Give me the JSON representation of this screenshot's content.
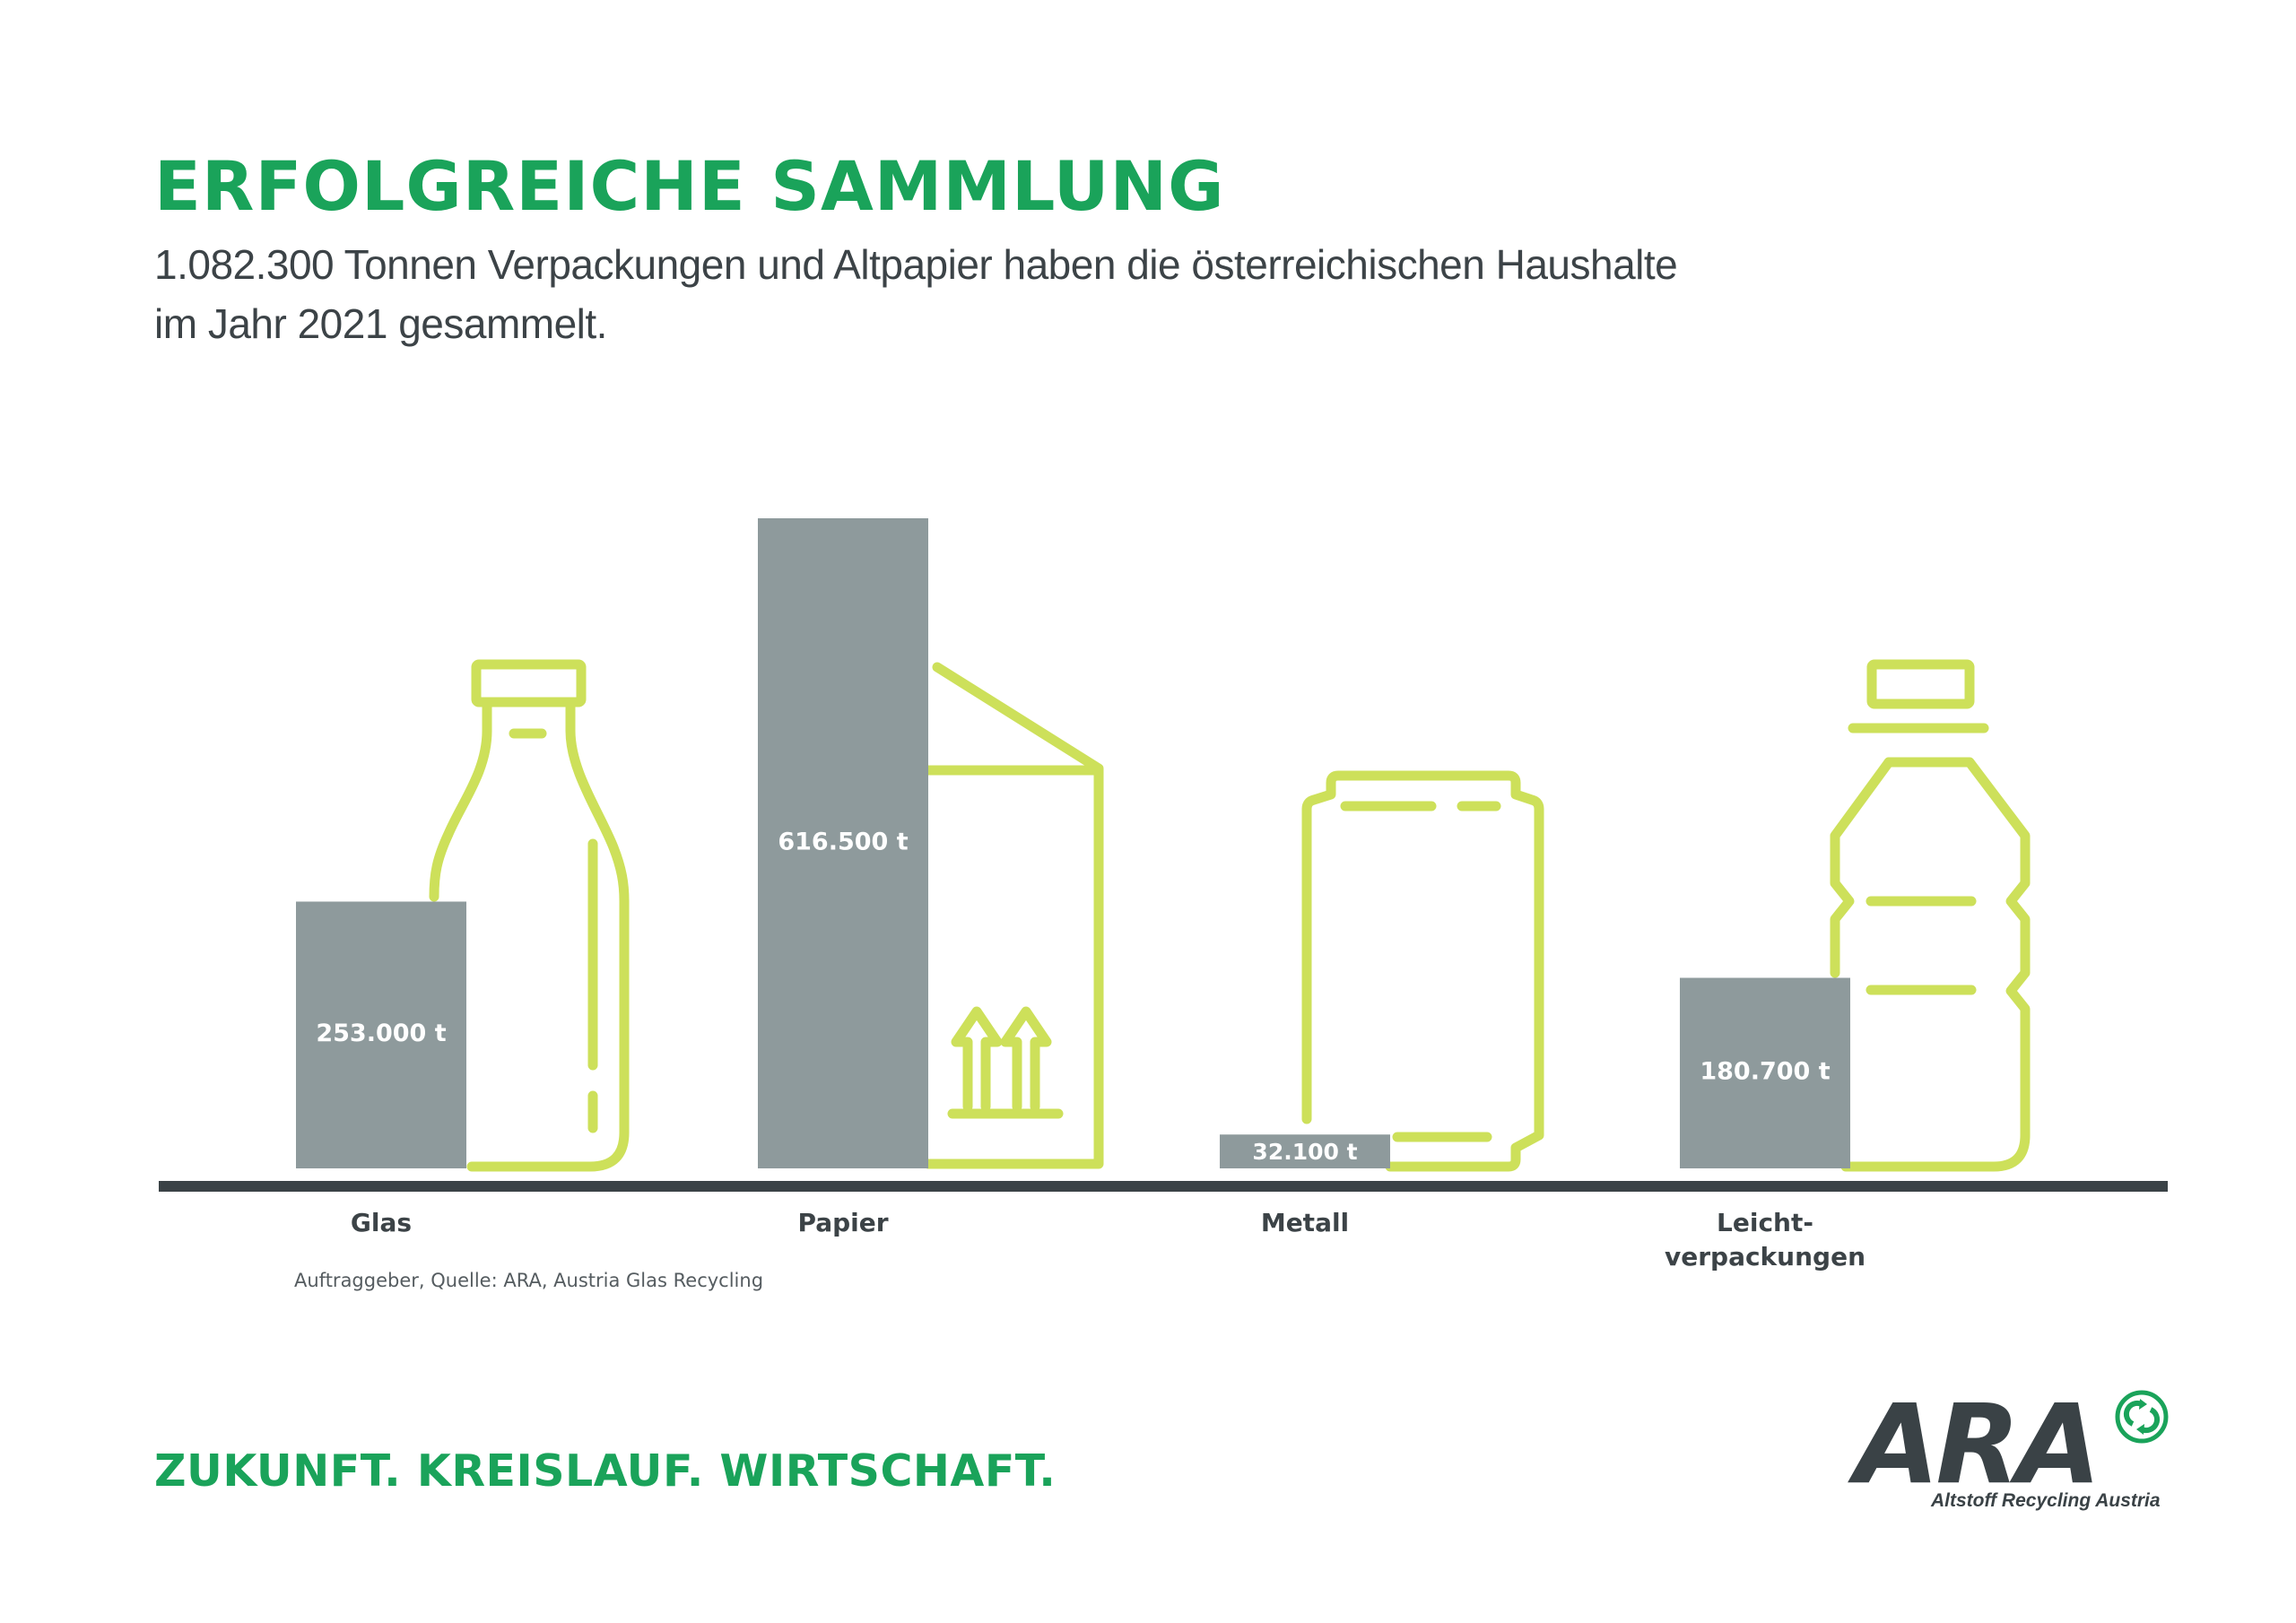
{
  "header": {
    "title": "ERFOLGREICHE SAMMLUNG",
    "subtitle_line1": "1.082.300 Tonnen Verpackungen und Altpapier haben die österreichischen Haushalte",
    "subtitle_line2": "im Jahr 2021 gesammelt."
  },
  "chart_data": {
    "type": "bar",
    "categories": [
      "Glas",
      "Papier",
      "Metall",
      "Leicht-verpackungen"
    ],
    "category_label_lines": [
      [
        "Glas"
      ],
      [
        "Papier"
      ],
      [
        "Metall"
      ],
      [
        "Leicht-",
        "verpackungen"
      ]
    ],
    "values": [
      253000,
      616500,
      32100,
      180700
    ],
    "value_labels": [
      "253.000 t",
      "616.500 t",
      "32.100 t",
      "180.700 t"
    ],
    "unit": "t",
    "icons": [
      "glass-bottle-icon",
      "paper-carton-icon",
      "metal-can-icon",
      "plastic-bottle-icon"
    ],
    "bar_color": "#8e9a9c",
    "icon_color": "#cde05a",
    "baseline_color": "#3a4246",
    "grid": false,
    "legend": "none"
  },
  "footer": {
    "source": "Auftraggeber, Quelle: ARA, Austria Glas Recycling",
    "slogan": "ZUKUNFT. KREISLAUF. WIRTSCHAFT."
  },
  "logo": {
    "text": "ARA",
    "subtitle": "Altstoff Recycling Austria",
    "icon": "green-dot-recycling-icon"
  },
  "colors": {
    "brand_green": "#1aa35a",
    "text_dark": "#3c4347"
  }
}
